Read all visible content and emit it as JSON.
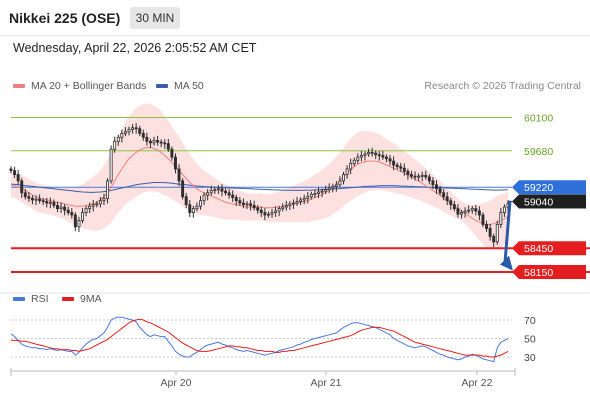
{
  "header": {
    "title": "Nikkei 225 (OSE)",
    "timeframe": "30 MIN",
    "datetime": "Wednesday, April 22, 2026 2:05:52 AM CET"
  },
  "legend": {
    "ma20_label": "MA 20 + Bollinger Bands",
    "ma50_label": "MA 50",
    "credit": "Research © 2026 Trading Central"
  },
  "colors": {
    "ma20": "#f08080",
    "ma50": "#3a5fa8",
    "bands_fill": "#fde0e0",
    "resistance": "#8cc63f",
    "support": "#e41e1e",
    "price_line": "#4a78d8",
    "arrow": "#2a5aa8",
    "candle": "#2e2e2e",
    "rsi": "#4a78d8",
    "rsi_ma": "#e41e1e"
  },
  "chart_data": [
    {
      "type": "candlestick",
      "title": "Nikkei 225 (OSE)",
      "timeframe": "30 MIN",
      "x_ticks": [
        "Apr 20",
        "Apr 21",
        "Apr 22"
      ],
      "ylim": [
        58100,
        60260
      ],
      "levels": [
        {
          "value": 60100,
          "label": "60100",
          "kind": "resistance"
        },
        {
          "value": 59680,
          "label": "59680",
          "kind": "resistance"
        },
        {
          "value": 59220,
          "label": "59220",
          "kind": "current"
        },
        {
          "value": 59040,
          "label": "59040",
          "kind": "last"
        },
        {
          "value": 58450,
          "label": "58450",
          "kind": "support"
        },
        {
          "value": 58150,
          "label": "58150",
          "kind": "support"
        }
      ],
      "close": [
        59430,
        59380,
        59300,
        59150,
        59100,
        59080,
        59060,
        59070,
        59050,
        59040,
        59020,
        59030,
        58990,
        58950,
        58970,
        58930,
        58900,
        58870,
        58720,
        58800,
        58900,
        58950,
        58980,
        59000,
        59010,
        59050,
        59080,
        59300,
        59700,
        59800,
        59850,
        59900,
        59920,
        59950,
        59970,
        59960,
        59900,
        59850,
        59800,
        59780,
        59810,
        59790,
        59780,
        59770,
        59700,
        59600,
        59450,
        59300,
        59100,
        59000,
        58900,
        58950,
        58980,
        59050,
        59120,
        59150,
        59180,
        59190,
        59200,
        59170,
        59150,
        59120,
        59090,
        59050,
        59020,
        59000,
        59010,
        58990,
        58960,
        58930,
        58900,
        58870,
        58880,
        58900,
        58920,
        58950,
        58970,
        58990,
        59010,
        59020,
        59040,
        59060,
        59080,
        59100,
        59130,
        59140,
        59160,
        59170,
        59190,
        59210,
        59230,
        59250,
        59300,
        59380,
        59450,
        59520,
        59560,
        59600,
        59620,
        59640,
        59660,
        59650,
        59630,
        59620,
        59600,
        59580,
        59550,
        59500,
        59480,
        59460,
        59420,
        59380,
        59360,
        59350,
        59360,
        59370,
        59350,
        59300,
        59250,
        59200,
        59150,
        59100,
        59050,
        59000,
        58950,
        58880,
        58900,
        58920,
        58930,
        58950,
        58920,
        58870,
        58750,
        58700,
        58600,
        58530,
        58750,
        58900,
        58970,
        59010
      ],
      "ma20": [
        59250,
        59240,
        59220,
        59200,
        59180,
        59150,
        59120,
        59100,
        59080,
        59070,
        59060,
        59050,
        59040,
        59030,
        59020,
        59010,
        59000,
        58990,
        58980,
        58980,
        58980,
        58990,
        59000,
        59010,
        59030,
        59060,
        59100,
        59150,
        59220,
        59300,
        59380,
        59450,
        59520,
        59580,
        59620,
        59660,
        59690,
        59710,
        59720,
        59720,
        59710,
        59690,
        59660,
        59620,
        59580,
        59530,
        59480,
        59430,
        59380,
        59330,
        59280,
        59240,
        59200,
        59170,
        59150,
        59130,
        59110,
        59090,
        59070,
        59050,
        59030,
        59020,
        59010,
        59000,
        58990,
        58980,
        58970,
        58970,
        58970,
        58970,
        58970,
        58960,
        58960,
        58960,
        58970,
        58970,
        58980,
        58990,
        59000,
        59010,
        59020,
        59030,
        59040,
        59050,
        59070,
        59090,
        59110,
        59130,
        59150,
        59180,
        59220,
        59260,
        59300,
        59350,
        59400,
        59440,
        59480,
        59510,
        59530,
        59540,
        59550,
        59550,
        59550,
        59540,
        59520,
        59500,
        59480,
        59460,
        59440,
        59420,
        59400,
        59370,
        59350,
        59320,
        59300,
        59270,
        59240,
        59210,
        59180,
        59150,
        59120,
        59080,
        59050,
        59010,
        58980,
        58950,
        58920,
        58890,
        58860,
        58830,
        58800,
        58780,
        58760,
        58750,
        58750,
        58760,
        58780,
        58800,
        58820,
        58850
      ],
      "ma50": [
        59260,
        59255,
        59250,
        59245,
        59240,
        59235,
        59230,
        59225,
        59220,
        59215,
        59210,
        59205,
        59200,
        59195,
        59190,
        59185,
        59180,
        59175,
        59170,
        59165,
        59160,
        59158,
        59155,
        59155,
        59158,
        59160,
        59165,
        59170,
        59180,
        59190,
        59200,
        59210,
        59220,
        59230,
        59240,
        59250,
        59260,
        59265,
        59270,
        59275,
        59280,
        59280,
        59280,
        59278,
        59275,
        59270,
        59265,
        59260,
        59255,
        59250,
        59245,
        59240,
        59236,
        59232,
        59228,
        59225,
        59222,
        59220,
        59218,
        59216,
        59214,
        59212,
        59210,
        59208,
        59206,
        59204,
        59202,
        59200,
        59198,
        59196,
        59194,
        59192,
        59190,
        59188,
        59186,
        59185,
        59184,
        59183,
        59182,
        59181,
        59180,
        59180,
        59181,
        59182,
        59184,
        59186,
        59188,
        59190,
        59192,
        59195,
        59198,
        59200,
        59203,
        59206,
        59210,
        59214,
        59218,
        59222,
        59226,
        59230,
        59232,
        59234,
        59236,
        59238,
        59240,
        59240,
        59240,
        59240,
        59238,
        59236,
        59234,
        59232,
        59230,
        59228,
        59226,
        59224,
        59222,
        59220,
        59218,
        59216,
        59214,
        59212,
        59210,
        59208,
        59206,
        59204,
        59202,
        59200,
        59198,
        59196,
        59194,
        59192,
        59190,
        59188,
        59186,
        59184,
        59184,
        59185,
        59186,
        59188
      ],
      "bands_halfwidth": [
        160,
        160,
        165,
        170,
        170,
        175,
        180,
        180,
        180,
        180,
        180,
        180,
        180,
        185,
        190,
        200,
        210,
        220,
        240,
        260,
        280,
        300,
        320,
        340,
        360,
        380,
        400,
        420,
        440,
        460,
        480,
        500,
        520,
        540,
        550,
        560,
        560,
        560,
        555,
        550,
        540,
        530,
        520,
        500,
        480,
        460,
        440,
        420,
        400,
        380,
        360,
        340,
        320,
        300,
        280,
        270,
        260,
        250,
        240,
        230,
        220,
        210,
        200,
        190,
        185,
        180,
        175,
        170,
        170,
        170,
        170,
        170,
        175,
        180,
        185,
        190,
        200,
        210,
        220,
        230,
        240,
        250,
        260,
        270,
        280,
        290,
        300,
        310,
        320,
        330,
        340,
        350,
        360,
        370,
        380,
        390,
        400,
        400,
        400,
        390,
        380,
        370,
        360,
        350,
        340,
        330,
        320,
        310,
        300,
        290,
        280,
        270,
        260,
        250,
        240,
        230,
        220,
        210,
        200,
        190,
        180,
        170,
        160,
        150,
        140,
        130,
        120,
        130,
        150,
        170,
        200,
        230,
        260,
        280,
        300,
        320,
        330,
        330,
        320,
        310
      ]
    },
    {
      "type": "line",
      "title": "RSI",
      "series": [
        {
          "name": "RSI",
          "values": [
            55,
            52,
            48,
            44,
            42,
            41,
            40,
            40,
            39,
            39,
            38,
            39,
            38,
            37,
            38,
            37,
            36,
            36,
            32,
            35,
            40,
            44,
            47,
            49,
            50,
            53,
            56,
            62,
            70,
            72,
            73,
            73,
            72,
            71,
            70,
            68,
            62,
            58,
            54,
            52,
            54,
            53,
            52,
            52,
            47,
            42,
            36,
            33,
            31,
            30,
            30,
            33,
            35,
            38,
            41,
            43,
            44,
            45,
            46,
            44,
            43,
            41,
            40,
            38,
            37,
            36,
            37,
            36,
            35,
            34,
            33,
            32,
            33,
            34,
            35,
            37,
            38,
            39,
            40,
            41,
            43,
            44,
            46,
            47,
            49,
            50,
            51,
            52,
            53,
            54,
            55,
            56,
            59,
            62,
            64,
            66,
            67,
            67,
            66,
            65,
            64,
            63,
            62,
            60,
            58,
            56,
            54,
            50,
            48,
            46,
            44,
            42,
            41,
            40,
            41,
            42,
            41,
            39,
            37,
            35,
            33,
            32,
            30,
            29,
            28,
            27,
            28,
            30,
            31,
            33,
            32,
            30,
            28,
            27,
            26,
            25,
            40,
            46,
            48,
            50
          ]
        },
        {
          "name": "9MA",
          "values": [
            48,
            48,
            48,
            47,
            47,
            46,
            45,
            44,
            43,
            42,
            41,
            40,
            39,
            39,
            38,
            38,
            38,
            37,
            37,
            36,
            37,
            38,
            39,
            41,
            43,
            45,
            47,
            49,
            52,
            55,
            58,
            61,
            64,
            67,
            69,
            70,
            71,
            70,
            68,
            67,
            65,
            63,
            61,
            59,
            57,
            54,
            51,
            48,
            45,
            43,
            41,
            39,
            37,
            36,
            36,
            36,
            37,
            38,
            39,
            40,
            41,
            42,
            42,
            41,
            41,
            40,
            40,
            39,
            38,
            37,
            37,
            36,
            36,
            36,
            35,
            35,
            36,
            36,
            37,
            37,
            38,
            39,
            40,
            41,
            42,
            43,
            44,
            45,
            46,
            47,
            48,
            49,
            50,
            51,
            52,
            53,
            55,
            57,
            59,
            60,
            61,
            62,
            62,
            62,
            61,
            60,
            59,
            58,
            56,
            54,
            52,
            50,
            48,
            46,
            45,
            44,
            43,
            42,
            41,
            40,
            39,
            38,
            37,
            36,
            35,
            34,
            33,
            32,
            32,
            32,
            32,
            32,
            31,
            31,
            30,
            30,
            31,
            32,
            34,
            36
          ]
        }
      ],
      "ylim": [
        20,
        80
      ],
      "levels": [
        {
          "value": 70,
          "label": "70"
        },
        {
          "value": 50,
          "label": "50"
        },
        {
          "value": 30,
          "label": "30"
        }
      ]
    }
  ]
}
